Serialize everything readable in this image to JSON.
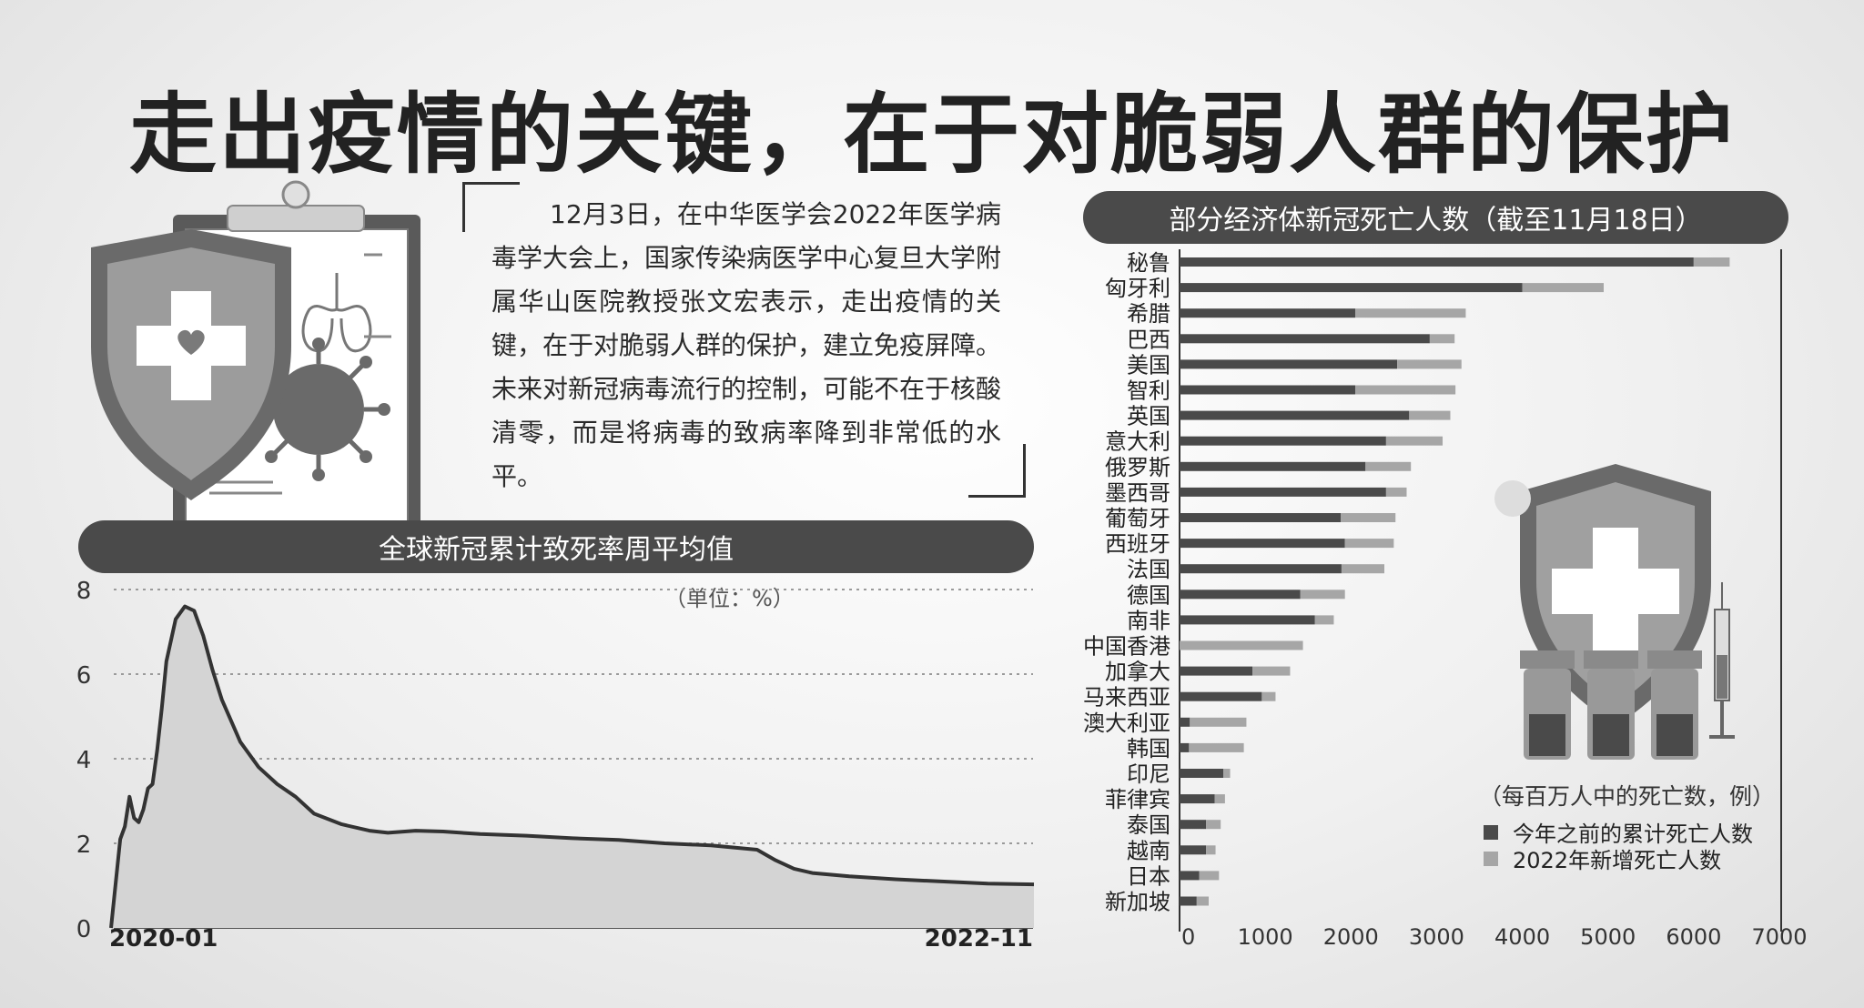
{
  "title": "走出疫情的关键，在于对脆弱人群的保护",
  "quote": "12月3日，在中华医学会2022年医学病毒学大会上，国家传染病医学中心复旦大学附属华山医院教授张文宏表示，走出疫情的关键，在于对脆弱人群的保护，建立免疫屏障。未来对新冠病毒流行的控制，可能不在于核酸清零，而是将病毒的致病率降到非常低的水平。",
  "colors": {
    "dark": "#4a4a4a",
    "light": "#a6a6a6",
    "pill": "#4a4a4a"
  },
  "chart_data": [
    {
      "type": "area",
      "title": "全球新冠累计致死率周平均值",
      "unit": "（单位：%）",
      "ylim": [
        0,
        8
      ],
      "y_ticks": [
        "0",
        "2",
        "4",
        "6",
        "8"
      ],
      "x_tick_labels": [
        "2020-01",
        "2022-11"
      ],
      "grid": "dotted horizontal",
      "series": [
        {
          "x": [
            0,
            0.01,
            0.015,
            0.02,
            0.025,
            0.03,
            0.035,
            0.04,
            0.045,
            0.05,
            0.055,
            0.06,
            0.07,
            0.08,
            0.09,
            0.095,
            0.1,
            0.11,
            0.12,
            0.14,
            0.16,
            0.18,
            0.2,
            0.22,
            0.25,
            0.28,
            0.3,
            0.33,
            0.36,
            0.4,
            0.45,
            0.5,
            0.55,
            0.6,
            0.65,
            0.7,
            0.72,
            0.74,
            0.76,
            0.8,
            0.85,
            0.9,
            0.95,
            1.0
          ],
          "y": [
            0,
            2.1,
            2.4,
            3.1,
            2.6,
            2.5,
            2.8,
            3.3,
            3.4,
            4.2,
            5.2,
            6.3,
            7.3,
            7.6,
            7.5,
            7.2,
            6.9,
            6.1,
            5.4,
            4.4,
            3.8,
            3.4,
            3.1,
            2.7,
            2.45,
            2.3,
            2.25,
            2.3,
            2.28,
            2.22,
            2.18,
            2.12,
            2.08,
            2.0,
            1.95,
            1.85,
            1.6,
            1.4,
            1.3,
            1.22,
            1.15,
            1.1,
            1.05,
            1.03
          ]
        }
      ]
    },
    {
      "type": "bar",
      "orientation": "horizontal",
      "stacked": true,
      "title": "部分经济体新冠死亡人数（截至11月18日）",
      "unit_note": "（每百万人中的死亡数，例）",
      "categories": [
        "秘鲁",
        "匈牙利",
        "希腊",
        "巴西",
        "美国",
        "智利",
        "英国",
        "意大利",
        "俄罗斯",
        "墨西哥",
        "葡萄牙",
        "西班牙",
        "法国",
        "德国",
        "南非",
        "中国香港",
        "加拿大",
        "马来西亚",
        "澳大利亚",
        "韩国",
        "印尼",
        "菲律宾",
        "泰国",
        "越南",
        "日本",
        "新加坡"
      ],
      "series": [
        {
          "name": "今年之前的累计死亡人数",
          "values": [
            6000,
            4000,
            2050,
            2920,
            2540,
            2050,
            2680,
            2410,
            2170,
            2410,
            1880,
            1930,
            1890,
            1410,
            1580,
            0,
            850,
            960,
            120,
            110,
            510,
            410,
            310,
            310,
            230,
            200
          ]
        },
        {
          "name": "2022年新增死亡人数",
          "values": [
            420,
            950,
            1290,
            290,
            750,
            1170,
            480,
            660,
            530,
            240,
            640,
            570,
            500,
            520,
            220,
            1440,
            440,
            160,
            660,
            640,
            80,
            120,
            170,
            110,
            230,
            140
          ]
        }
      ],
      "xlim": [
        0,
        7000
      ],
      "x_ticks": [
        "0",
        "1000",
        "2000",
        "3000",
        "4000",
        "5000",
        "6000",
        "7000"
      ]
    }
  ]
}
